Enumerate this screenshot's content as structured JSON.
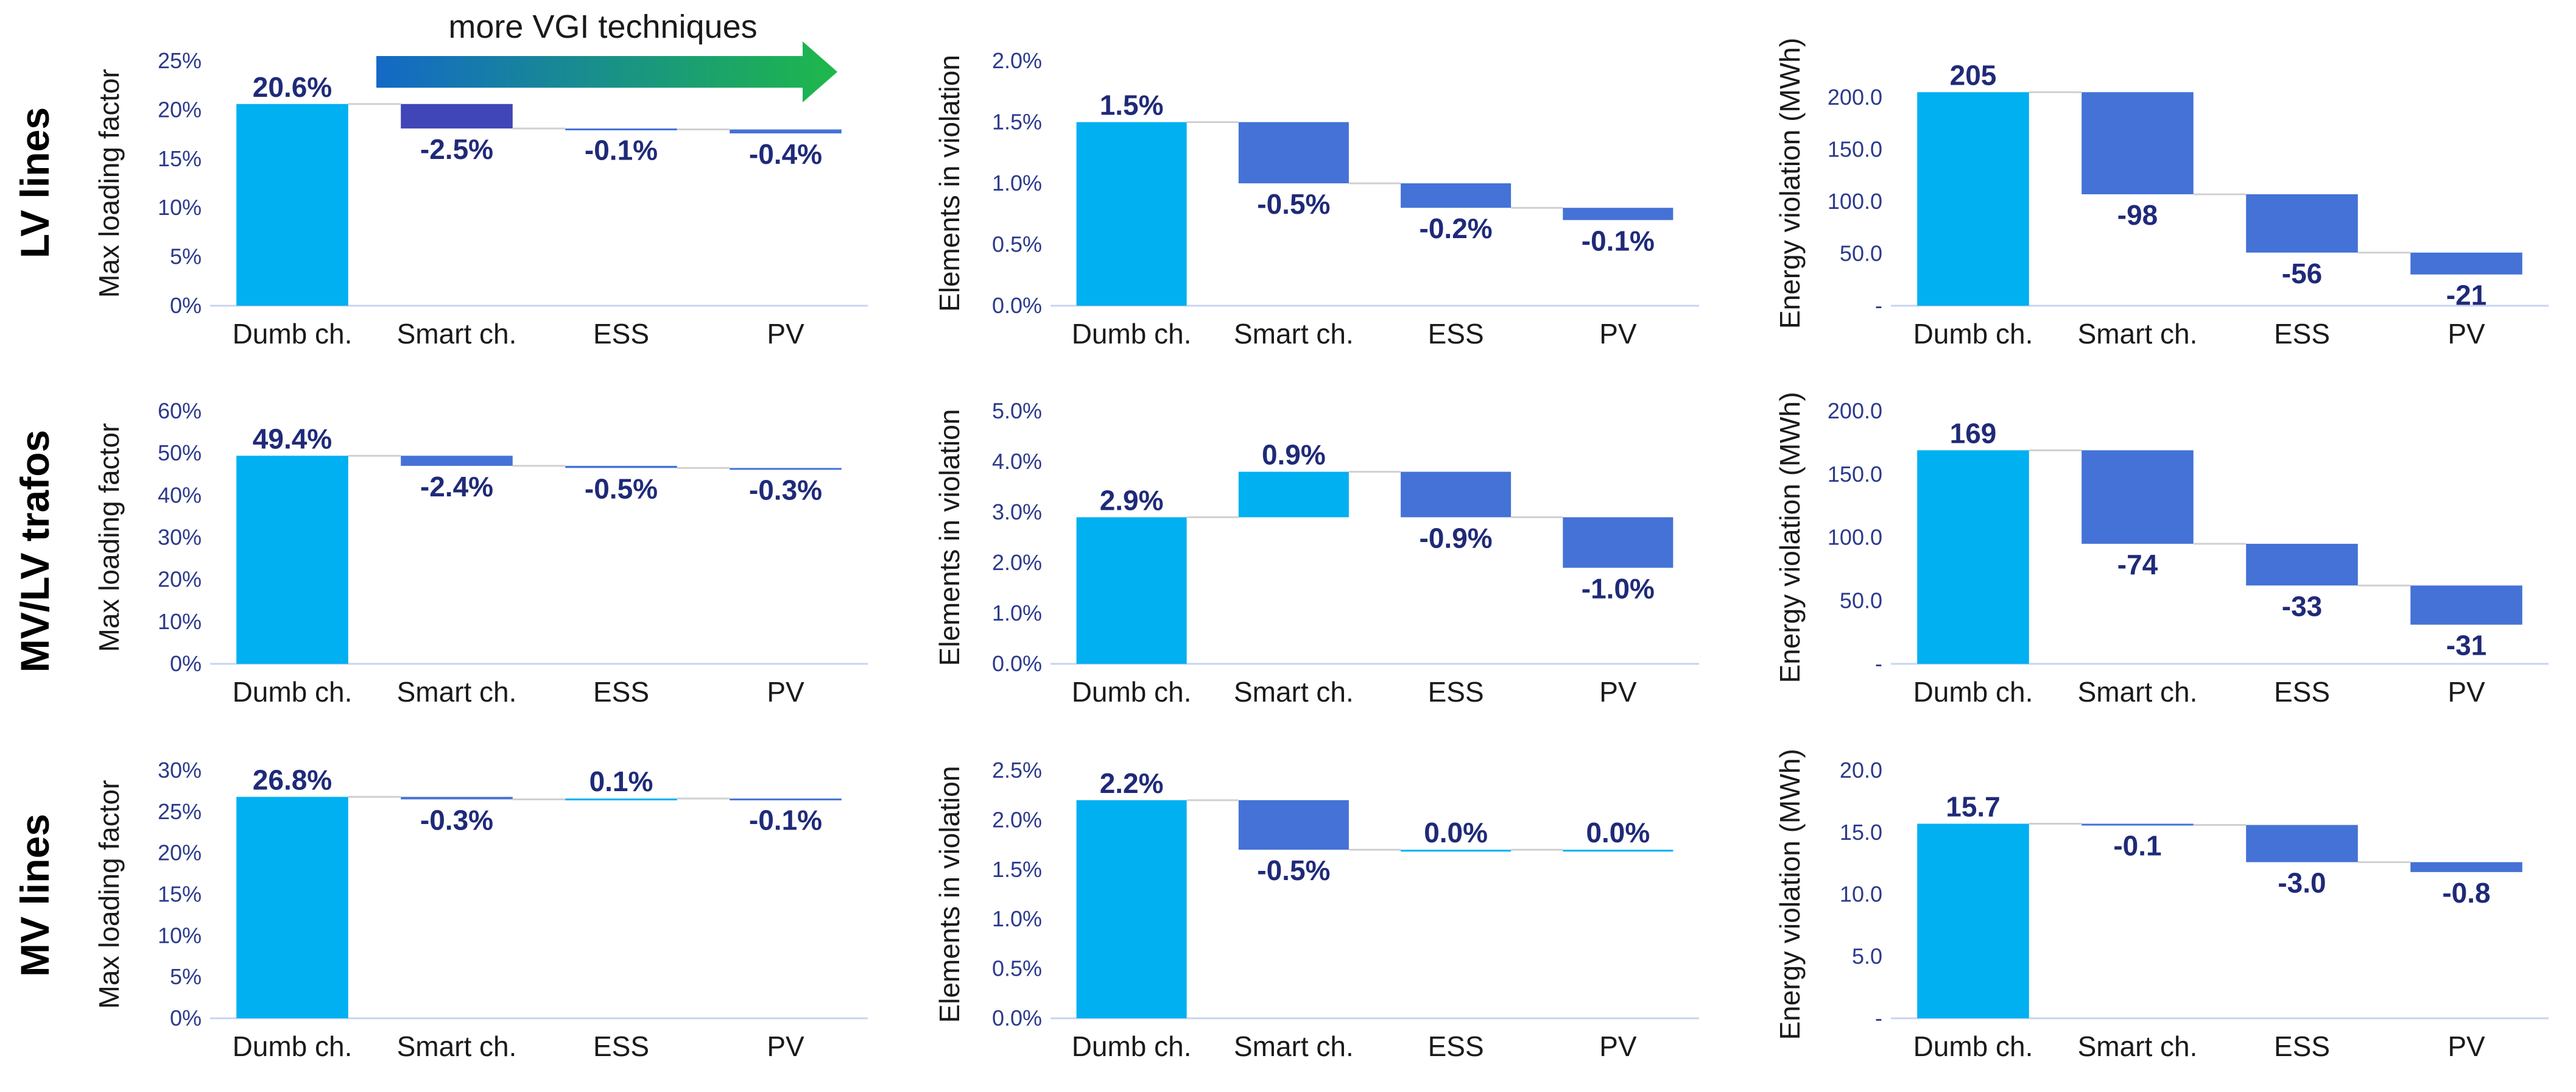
{
  "colors": {
    "base": "#00b0f0",
    "decrease": "#4472d6",
    "decrease_dark": "#4046b8",
    "connector": "#d0d0d0",
    "axis": "#c8d4f0",
    "tick_text": "#2b3a8c",
    "data_label": "#1f2a78",
    "arrow_start": "#1469c7",
    "arrow_end": "#1eb84a"
  },
  "arrow": {
    "label": "more VGI techniques"
  },
  "rows": [
    "LV lines",
    "MV/LV trafos",
    "MV lines"
  ],
  "chart_data": [
    {
      "id": "lv-loading",
      "type": "waterfall",
      "title": "",
      "row_label": "LV lines",
      "ylabel": "Max loading factor",
      "categories": [
        "Dumb ch.",
        "Smart ch.",
        "ESS",
        "PV"
      ],
      "values": [
        20.6,
        -2.5,
        -0.1,
        -0.4
      ],
      "labels": [
        "20.6%",
        "-2.5%",
        "-0.1%",
        "-0.4%"
      ],
      "ylim": [
        0,
        25
      ],
      "yticks": [
        0,
        5,
        10,
        15,
        20,
        25
      ],
      "ytick_labels": [
        "0%",
        "5%",
        "10%",
        "15%",
        "20%",
        "25%"
      ],
      "dark_first_decrease": true
    },
    {
      "id": "lv-elements",
      "type": "waterfall",
      "title": "",
      "row_label": "LV lines",
      "ylabel": "Elements in violation",
      "categories": [
        "Dumb ch.",
        "Smart ch.",
        "ESS",
        "PV"
      ],
      "values": [
        1.5,
        -0.5,
        -0.2,
        -0.1
      ],
      "labels": [
        "1.5%",
        "-0.5%",
        "-0.2%",
        "-0.1%"
      ],
      "ylim": [
        0,
        2
      ],
      "yticks": [
        0,
        0.5,
        1,
        1.5,
        2
      ],
      "ytick_labels": [
        "0.0%",
        "0.5%",
        "1.0%",
        "1.5%",
        "2.0%"
      ]
    },
    {
      "id": "lv-energy",
      "type": "waterfall",
      "title": "",
      "row_label": "LV lines",
      "ylabel": "Energy violation (MWh)",
      "categories": [
        "Dumb ch.",
        "Smart ch.",
        "ESS",
        "PV"
      ],
      "values": [
        205,
        -98,
        -56,
        -21
      ],
      "labels": [
        "205",
        "-98",
        "-56",
        "-21"
      ],
      "ylim": [
        0,
        235
      ],
      "yticks": [
        0,
        50,
        100,
        150,
        200
      ],
      "ytick_labels": [
        "-",
        "50.0",
        "100.0",
        "150.0",
        "200.0"
      ]
    },
    {
      "id": "trafo-loading",
      "type": "waterfall",
      "title": "",
      "row_label": "MV/LV trafos",
      "ylabel": "Max loading factor",
      "categories": [
        "Dumb ch.",
        "Smart ch.",
        "ESS",
        "PV"
      ],
      "values": [
        49.4,
        -2.4,
        -0.5,
        -0.3
      ],
      "labels": [
        "49.4%",
        "-2.4%",
        "-0.5%",
        "-0.3%"
      ],
      "ylim": [
        0,
        60
      ],
      "yticks": [
        0,
        10,
        20,
        30,
        40,
        50,
        60
      ],
      "ytick_labels": [
        "0%",
        "10%",
        "20%",
        "30%",
        "40%",
        "50%",
        "60%"
      ]
    },
    {
      "id": "trafo-elements",
      "type": "waterfall",
      "title": "",
      "row_label": "MV/LV trafos",
      "ylabel": "Elements in violation",
      "categories": [
        "Dumb ch.",
        "Smart ch.",
        "ESS",
        "PV"
      ],
      "values": [
        2.9,
        0.9,
        -0.9,
        -1.0
      ],
      "labels": [
        "2.9%",
        "0.9%",
        "-0.9%",
        "-1.0%"
      ],
      "ylim": [
        0,
        5
      ],
      "yticks": [
        0,
        1,
        2,
        3,
        4,
        5
      ],
      "ytick_labels": [
        "0.0%",
        "1.0%",
        "2.0%",
        "3.0%",
        "4.0%",
        "5.0%"
      ]
    },
    {
      "id": "trafo-energy",
      "type": "waterfall",
      "title": "",
      "row_label": "MV/LV trafos",
      "ylabel": "Energy violation (MWh)",
      "categories": [
        "Dumb ch.",
        "Smart ch.",
        "ESS",
        "PV"
      ],
      "values": [
        169,
        -74,
        -33,
        -31
      ],
      "labels": [
        "169",
        "-74",
        "-33",
        "-31"
      ],
      "ylim": [
        0,
        200
      ],
      "yticks": [
        0,
        50,
        100,
        150,
        200
      ],
      "ytick_labels": [
        "-",
        "50.0",
        "100.0",
        "150.0",
        "200.0"
      ]
    },
    {
      "id": "mv-loading",
      "type": "waterfall",
      "title": "",
      "row_label": "MV lines",
      "ylabel": "Max loading factor",
      "categories": [
        "Dumb ch.",
        "Smart ch.",
        "ESS",
        "PV"
      ],
      "values": [
        26.8,
        -0.3,
        0.1,
        -0.1
      ],
      "labels": [
        "26.8%",
        "-0.3%",
        "0.1%",
        "-0.1%"
      ],
      "ylim": [
        0,
        30
      ],
      "yticks": [
        0,
        5,
        10,
        15,
        20,
        25,
        30
      ],
      "ytick_labels": [
        "0%",
        "5%",
        "10%",
        "15%",
        "20%",
        "25%",
        "30%"
      ]
    },
    {
      "id": "mv-elements",
      "type": "waterfall",
      "title": "",
      "row_label": "MV lines",
      "ylabel": "Elements in violation",
      "categories": [
        "Dumb ch.",
        "Smart ch.",
        "ESS",
        "PV"
      ],
      "values": [
        2.2,
        -0.5,
        0.0,
        0.0
      ],
      "labels": [
        "2.2%",
        "-0.5%",
        "0.0%",
        "0.0%"
      ],
      "ylim": [
        0,
        2.5
      ],
      "yticks": [
        0,
        0.5,
        1,
        1.5,
        2,
        2.5
      ],
      "ytick_labels": [
        "0.0%",
        "0.5%",
        "1.0%",
        "1.5%",
        "2.0%",
        "2.5%"
      ]
    },
    {
      "id": "mv-energy",
      "type": "waterfall",
      "title": "",
      "row_label": "MV lines",
      "ylabel": "Energy violation (MWh)",
      "categories": [
        "Dumb ch.",
        "Smart ch.",
        "ESS",
        "PV"
      ],
      "values": [
        15.7,
        -0.1,
        -3.0,
        -0.8
      ],
      "labels": [
        "15.7",
        "-0.1",
        "-3.0",
        "-0.8"
      ],
      "ylim": [
        0,
        20
      ],
      "yticks": [
        0,
        5,
        10,
        15,
        20
      ],
      "ytick_labels": [
        "-",
        "5.0",
        "10.0",
        "15.0",
        "20.0"
      ]
    }
  ]
}
